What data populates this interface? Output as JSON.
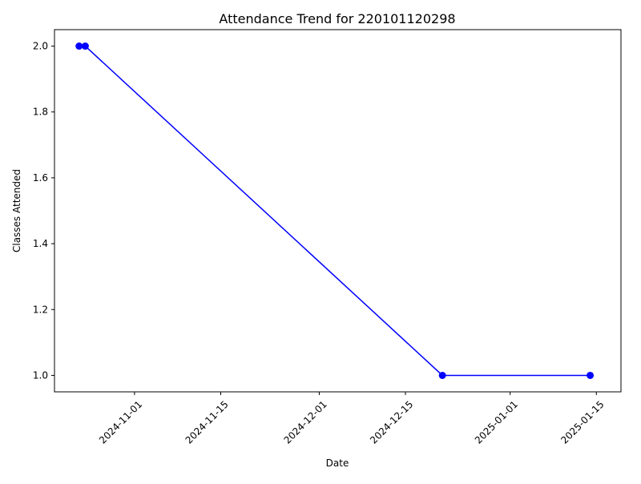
{
  "chart_data": {
    "type": "line",
    "title": "Attendance Trend for 220101120298",
    "xlabel": "Date",
    "ylabel": "Classes Attended",
    "x_axis_type": "date",
    "xlim": [
      "2024-10-19",
      "2025-01-19"
    ],
    "ylim": [
      0.95,
      2.05
    ],
    "x_ticks": [
      "2024-11-01",
      "2024-11-15",
      "2024-12-01",
      "2024-12-15",
      "2025-01-01",
      "2025-01-15"
    ],
    "y_ticks": [
      1.0,
      1.2,
      1.4,
      1.6,
      1.8,
      2.0
    ],
    "y_tick_labels": [
      "1.0",
      "1.2",
      "1.4",
      "1.6",
      "1.8",
      "2.0"
    ],
    "x_tick_rotation_deg": 45,
    "grid": false,
    "series": [
      {
        "marker": "circle",
        "color": "#0000ff",
        "x": [
          "2024-10-23",
          "2024-10-24",
          "2024-12-21",
          "2025-01-14"
        ],
        "y": [
          2,
          2,
          1,
          1
        ]
      }
    ]
  }
}
